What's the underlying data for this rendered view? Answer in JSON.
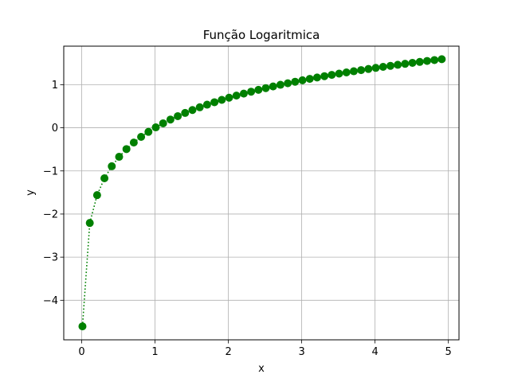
{
  "chart_data": {
    "type": "line",
    "title": "Função Logaritmica",
    "xlabel": "x",
    "ylabel": "y",
    "xlim": [
      -0.245,
      5.145
    ],
    "ylim": [
      -4.917,
      1.893
    ],
    "grid": true,
    "x_ticks": [
      0,
      1,
      2,
      3,
      4,
      5
    ],
    "y_ticks": [
      -4,
      -3,
      -2,
      -1,
      0,
      1
    ],
    "x_tick_labels": [
      "0",
      "1",
      "2",
      "3",
      "4",
      "5"
    ],
    "y_tick_labels": [
      "−4",
      "−3",
      "−2",
      "−1",
      "0",
      "1"
    ],
    "series": [
      {
        "color": "#008000",
        "line_style": "dotted",
        "marker": "circle",
        "x": [
          0.01,
          0.11,
          0.21,
          0.31,
          0.41,
          0.51,
          0.61,
          0.71,
          0.81,
          0.91,
          1.01,
          1.11,
          1.21,
          1.31,
          1.41,
          1.51,
          1.61,
          1.71,
          1.81,
          1.91,
          2.01,
          2.11,
          2.21,
          2.31,
          2.41,
          2.51,
          2.61,
          2.71,
          2.81,
          2.91,
          3.01,
          3.11,
          3.21,
          3.31,
          3.41,
          3.51,
          3.61,
          3.71,
          3.81,
          3.91,
          4.01,
          4.11,
          4.21,
          4.31,
          4.41,
          4.51,
          4.61,
          4.71,
          4.81,
          4.91
        ],
        "y": [
          -4.605,
          -2.207,
          -1.561,
          -1.171,
          -0.892,
          -0.673,
          -0.494,
          -0.342,
          -0.211,
          -0.094,
          0.01,
          0.104,
          0.191,
          0.27,
          0.344,
          0.412,
          0.476,
          0.536,
          0.593,
          0.647,
          0.698,
          0.747,
          0.793,
          0.837,
          0.88,
          0.92,
          0.959,
          0.997,
          1.033,
          1.068,
          1.102,
          1.135,
          1.166,
          1.197,
          1.227,
          1.256,
          1.284,
          1.311,
          1.338,
          1.364,
          1.389,
          1.413,
          1.437,
          1.461,
          1.484,
          1.506,
          1.528,
          1.55,
          1.571,
          1.591
        ]
      }
    ]
  }
}
